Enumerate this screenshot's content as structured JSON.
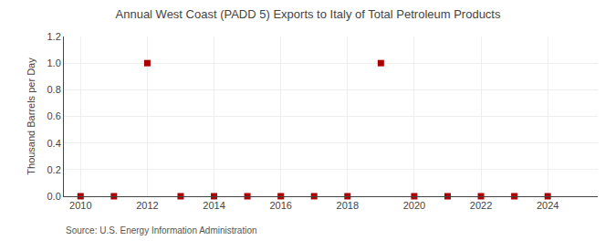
{
  "chart_data": {
    "type": "scatter",
    "title": "Annual West Coast (PADD 5) Exports to Italy of Total Petroleum Products",
    "ylabel": "Thousand Barrels per Day",
    "annotations": [
      "Source: U.S. Energy Information Administration"
    ],
    "x": [
      2010,
      2011,
      2012,
      2013,
      2014,
      2015,
      2016,
      2017,
      2018,
      2019,
      2020,
      2021,
      2022,
      2023,
      2024
    ],
    "values": [
      0.0,
      0.0,
      1.0,
      0.0,
      0.0,
      0.0,
      0.0,
      0.0,
      0.0,
      1.0,
      0.0,
      0.0,
      0.0,
      0.0,
      0.0
    ],
    "color": "#aa0000",
    "marker": "square",
    "xlim": [
      2009.5,
      2025.5
    ],
    "xticks": [
      2010,
      2012,
      2014,
      2016,
      2018,
      2020,
      2022,
      2024
    ],
    "ylim": [
      0.0,
      1.2
    ],
    "yticks": [
      {
        "value": 0.0,
        "label": "0.0"
      },
      0.2,
      0.4,
      0.6,
      0.8,
      {
        "value": 1.0,
        "label": "1.0"
      },
      1.2
    ],
    "grid": true
  }
}
